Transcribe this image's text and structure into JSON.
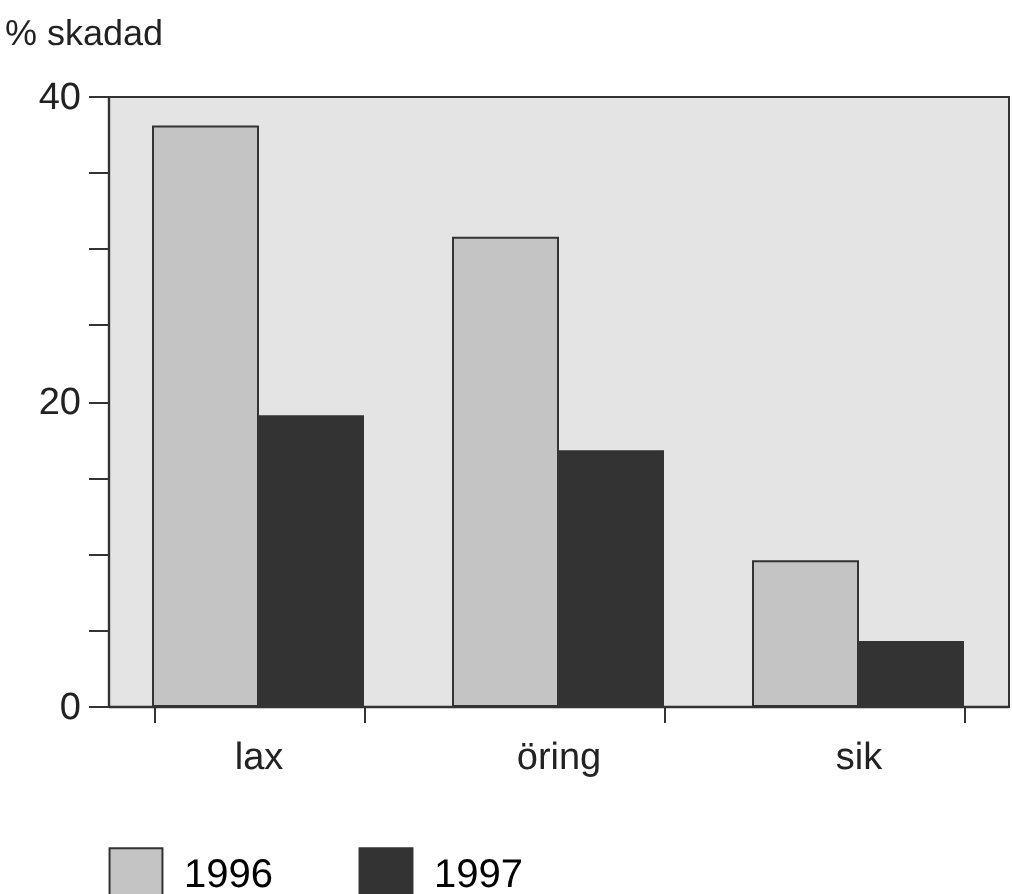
{
  "chart_data": {
    "type": "bar",
    "ylabel": "% skadad",
    "categories": [
      "lax",
      "öring",
      "sik"
    ],
    "series": [
      {
        "name": "1996",
        "color": "#c4c4c4",
        "values": [
          38,
          30.7,
          9.5
        ]
      },
      {
        "name": "1997",
        "color": "#333333",
        "values": [
          19,
          16.7,
          4.2
        ]
      }
    ],
    "ylim": [
      0,
      40
    ],
    "yticks": [
      0,
      {
        "value": 5,
        "label": null
      },
      {
        "value": 10,
        "label": null
      },
      {
        "value": 15,
        "label": null
      },
      20,
      {
        "value": 25,
        "label": null
      },
      {
        "value": 30,
        "label": null
      },
      {
        "value": 35,
        "label": null
      },
      40
    ],
    "grid": false,
    "legend": "bottom"
  }
}
